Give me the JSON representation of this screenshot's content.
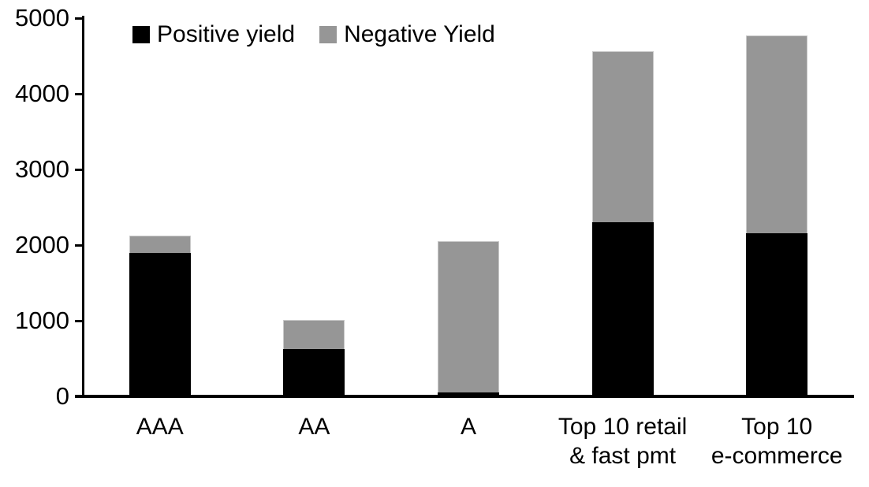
{
  "chart_data": {
    "type": "bar",
    "stacked": true,
    "title": "",
    "categories": [
      "AAA",
      "AA",
      "A",
      "Top 10 retail\n& fast pmt",
      "Top 10\ne-commerce"
    ],
    "series": [
      {
        "name": "Positive yield",
        "color": "#000000",
        "values": [
          1900,
          630,
          50,
          2300,
          2160
        ]
      },
      {
        "name": "Negative Yield",
        "color": "#969696",
        "values": [
          230,
          380,
          2000,
          2260,
          2610
        ]
      }
    ],
    "totals": [
      2130,
      1010,
      2050,
      4560,
      4770
    ],
    "ylim": [
      0,
      5000
    ],
    "yticks": [
      0,
      1000,
      2000,
      3000,
      4000,
      5000
    ],
    "legend_position": "top-left",
    "grid": false,
    "background_color": "#ffffff",
    "axis_color": "#000000",
    "negative_segment_border_color": "#c9c9c9"
  }
}
